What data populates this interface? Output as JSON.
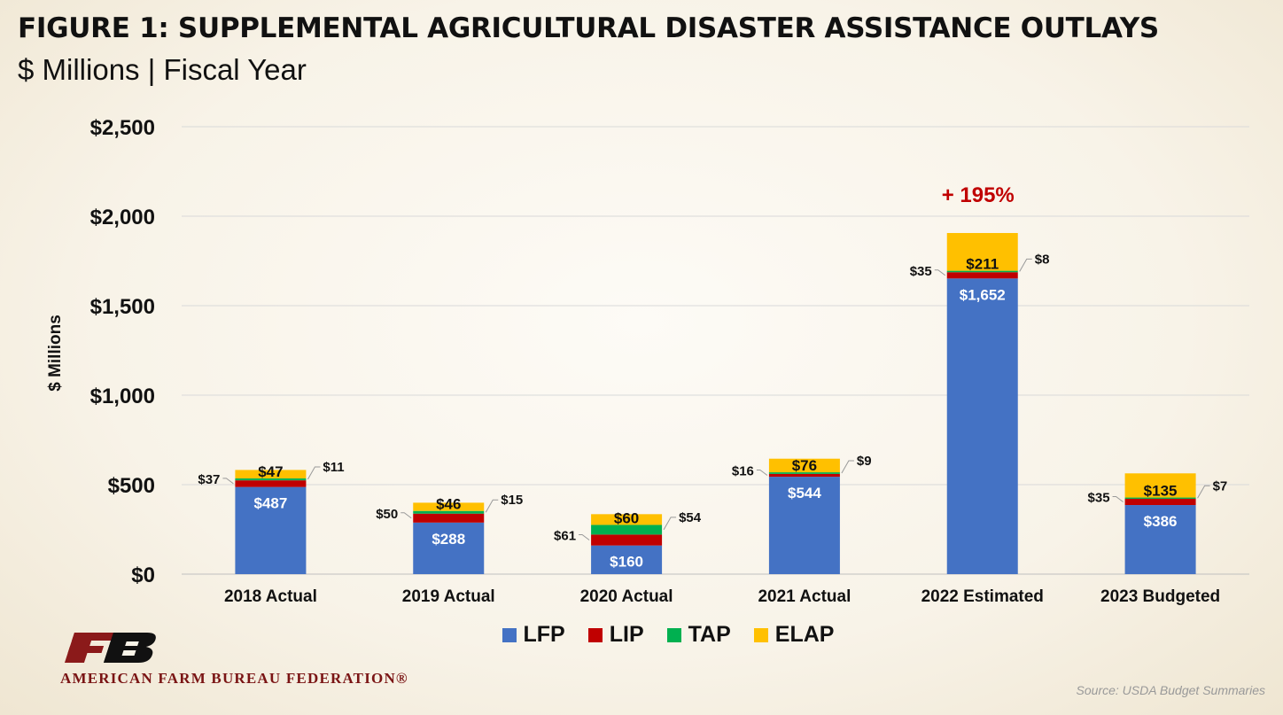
{
  "header": {
    "title": "FIGURE 1: SUPPLEMENTAL AGRICULTURAL DISASTER ASSISTANCE OUTLAYS",
    "subtitle": "$ Millions | Fiscal Year"
  },
  "footer": {
    "org_name": "AMERICAN FARM BUREAU FEDERATION®",
    "source": "Source: USDA Budget Summaries"
  },
  "chart_data": {
    "type": "bar",
    "stacked": true,
    "ylabel": "$ Millions",
    "ylim": [
      0,
      2500
    ],
    "yticks": [
      0,
      500,
      1000,
      1500,
      2000,
      2500
    ],
    "ytick_labels": [
      "$0",
      "$500",
      "$1,000",
      "$1,500",
      "$2,000",
      "$2,500"
    ],
    "grid": true,
    "legend_position": "bottom",
    "categories": [
      "2018 Actual",
      "2019 Actual",
      "2020 Actual",
      "2021 Actual",
      "2022 Estimated",
      "2023 Budgeted"
    ],
    "series": [
      {
        "name": "LFP",
        "color": "#4472c4",
        "values": [
          487,
          288,
          160,
          544,
          1652,
          386
        ],
        "labels": [
          "$487",
          "$288",
          "$160",
          "$544",
          "$1,652",
          "$386"
        ]
      },
      {
        "name": "LIP",
        "color": "#c00000",
        "values": [
          37,
          50,
          61,
          16,
          35,
          35
        ],
        "labels": [
          "$37",
          "$50",
          "$61",
          "$16",
          "$35",
          "$35"
        ]
      },
      {
        "name": "TAP",
        "color": "#00b050",
        "values": [
          11,
          15,
          54,
          9,
          8,
          7
        ],
        "labels": [
          "$11",
          "$15",
          "$54",
          "$9",
          "$8",
          "$7"
        ]
      },
      {
        "name": "ELAP",
        "color": "#ffc000",
        "values": [
          47,
          46,
          60,
          76,
          211,
          135
        ],
        "labels": [
          "$47",
          "$46",
          "$60",
          "$76",
          "$211",
          "$135"
        ]
      }
    ],
    "annotations": [
      {
        "text": "+ 195%",
        "category": "2022 Estimated",
        "color": "#c00000"
      }
    ]
  }
}
